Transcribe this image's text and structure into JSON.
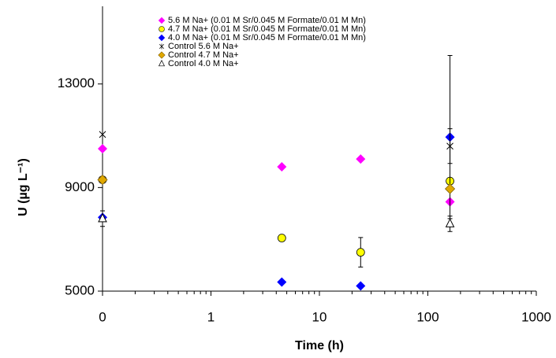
{
  "chart_data": {
    "type": "scatter",
    "xlabel": "Time (h)",
    "ylabel": "U (µg L⁻¹)",
    "xscale": "log",
    "xlim": [
      0.1,
      1000
    ],
    "xticks": [
      {
        "value": 0.1,
        "label": "0"
      },
      1,
      10,
      100,
      1000
    ],
    "ylim": [
      5000,
      16000
    ],
    "yticks": [
      5000,
      9000,
      13000
    ],
    "legend": "top-left",
    "series": [
      {
        "name": "5.6 M Na+ (0.01 M Sr/0.045 M Formate/0.01 M Mn)",
        "color": "#ff00ff",
        "marker": "diamond",
        "x": [
          0.1,
          4.5,
          24,
          160
        ],
        "values": [
          10500,
          9800,
          10100,
          8450
        ]
      },
      {
        "name": "4.7 M Na+ (0.01 M Sr/0.045 M Formate/0.01 M Mn)",
        "color": "#ffff00",
        "marker": "circle",
        "x": [
          0.1,
          4.5,
          24,
          160
        ],
        "values": [
          9300,
          7050,
          6500,
          9250
        ],
        "errors": [
          null,
          null,
          570,
          null
        ]
      },
      {
        "name": "4.0 M Na+ (0.01 M Sr/0.045 M Formate/0.01 M Mn)",
        "color": "#0000ff",
        "marker": "diamond",
        "x": [
          0.1,
          4.5,
          24,
          160
        ],
        "values": [
          7850,
          5350,
          5200,
          10950
        ],
        "errors": [
          null,
          null,
          null,
          3150
        ]
      },
      {
        "name": "Control 5.6 M Na+",
        "color": "#000000",
        "marker": "star",
        "x": [
          0.1,
          160
        ],
        "values": [
          11050,
          10600
        ],
        "errors": [
          null,
          670
        ]
      },
      {
        "name": "Control 4.7 M Na+",
        "color": "#e0a800",
        "marker": "diamond",
        "x": [
          0.1,
          160
        ],
        "values": [
          9300,
          8950
        ]
      },
      {
        "name": "Control 4.0 M Na+",
        "color": "#000000",
        "marker": "triangle",
        "x": [
          0.1,
          160
        ],
        "values": [
          7800,
          7600
        ],
        "errors": [
          300,
          300
        ]
      }
    ]
  }
}
